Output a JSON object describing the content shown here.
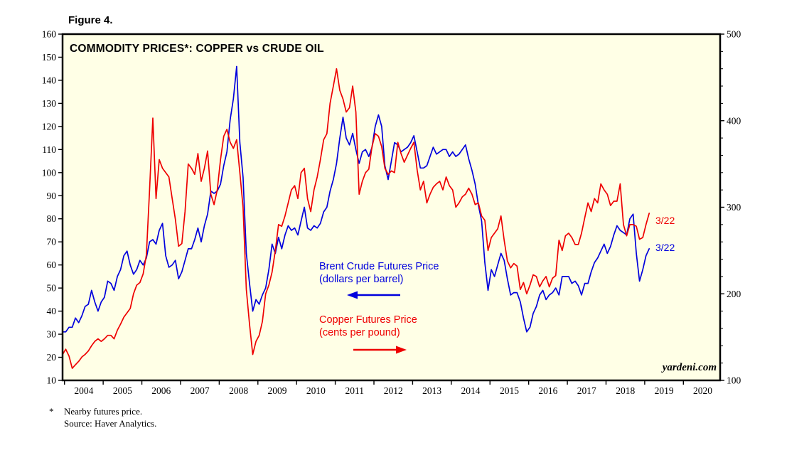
{
  "figure_label": "Figure 4.",
  "chart_title": "COMMODITY PRICES*: COPPER vs CRUDE OIL",
  "legend": {
    "brent": {
      "line1": "Brent Crude Futures Price",
      "line2": "(dollars per barrel)"
    },
    "copper": {
      "line1": "Copper Futures Price",
      "line2": "(cents per pound)"
    }
  },
  "annotations": {
    "brent": "3/22",
    "copper": "3/22"
  },
  "watermark": "yardeni.com",
  "footnote": {
    "marker": "*",
    "line1": "Nearby futures price.",
    "line2": "Source: Haver Analytics."
  },
  "colors": {
    "brent": "#0000dd",
    "copper": "#ee0000",
    "plot_bg": "#ffffe6",
    "axis": "#000000"
  },
  "chart_data": {
    "type": "line",
    "title": "COMMODITY PRICES*: COPPER vs CRUDE OIL",
    "x_axis": {
      "min": 2003.95,
      "max": 2020.95,
      "tick_start": 2004,
      "tick_end": 2020,
      "year_labels": [
        2004,
        2005,
        2006,
        2007,
        2008,
        2009,
        2010,
        2011,
        2012,
        2013,
        2014,
        2015,
        2016,
        2017,
        2018,
        2019,
        2020
      ]
    },
    "left_axis": {
      "min": 10,
      "max": 160,
      "tick_step": 10,
      "tick_labels": [
        10,
        20,
        30,
        40,
        50,
        60,
        70,
        80,
        90,
        100,
        110,
        120,
        130,
        140,
        150,
        160
      ]
    },
    "right_axis": {
      "min": 100,
      "max": 500,
      "tick_step": 100,
      "minor_step": 20,
      "tick_labels": [
        100,
        200,
        300,
        400,
        500
      ]
    },
    "series": [
      {
        "name": "Brent Crude Futures Price (dollars per barrel)",
        "axis": "left",
        "color_key": "brent",
        "x_start": 2003.95,
        "x_step": 0.0833333,
        "last_point_label": "3/22",
        "values": [
          31,
          31,
          33,
          33,
          37,
          35,
          38,
          42,
          43,
          49,
          44,
          40,
          44,
          46,
          53,
          52,
          49,
          55,
          58,
          64,
          66,
          60,
          56,
          58,
          62,
          60,
          63,
          70,
          71,
          69,
          75,
          78,
          64,
          59,
          60,
          62,
          54,
          57,
          62,
          67,
          67,
          71,
          76,
          70,
          77,
          82,
          92,
          91,
          92,
          95,
          103,
          109,
          123,
          132,
          146,
          113,
          98,
          65,
          52,
          40,
          45,
          43,
          47,
          50,
          58,
          69,
          65,
          72,
          67,
          73,
          77,
          75,
          76,
          73,
          79,
          85,
          76,
          75,
          77,
          76,
          78,
          83,
          85,
          92,
          97,
          104,
          115,
          124,
          115,
          112,
          117,
          110,
          104,
          109,
          110,
          107,
          111,
          120,
          125,
          120,
          103,
          97,
          105,
          113,
          112,
          109,
          110,
          111,
          113,
          116,
          109,
          102,
          102,
          103,
          107,
          111,
          108,
          109,
          110,
          110,
          107,
          109,
          107,
          108,
          110,
          112,
          106,
          101,
          95,
          86,
          79,
          61,
          49,
          58,
          55,
          60,
          65,
          62,
          54,
          47,
          48,
          48,
          44,
          37,
          31,
          33,
          39,
          42,
          47,
          49,
          45,
          47,
          48,
          50,
          47,
          55,
          55,
          55,
          52,
          53,
          51,
          47,
          52,
          52,
          57,
          61,
          63,
          66,
          69,
          65,
          68,
          73,
          77,
          75,
          74,
          73,
          80,
          82,
          65,
          53,
          58,
          64,
          67
        ]
      },
      {
        "name": "Copper Futures Price (cents per pound)",
        "axis": "right",
        "color_key": "copper",
        "x_start": 2003.95,
        "x_step": 0.0833333,
        "last_point_label": "3/22",
        "values": [
          130,
          136,
          128,
          114,
          118,
          122,
          127,
          130,
          134,
          140,
          145,
          148,
          145,
          148,
          152,
          152,
          148,
          158,
          165,
          173,
          178,
          183,
          200,
          210,
          213,
          223,
          245,
          320,
          403,
          310,
          355,
          345,
          340,
          335,
          310,
          286,
          255,
          258,
          295,
          350,
          345,
          338,
          362,
          330,
          345,
          365,
          315,
          303,
          320,
          355,
          382,
          390,
          375,
          368,
          378,
          340,
          300,
          205,
          165,
          130,
          145,
          152,
          168,
          200,
          210,
          225,
          250,
          280,
          278,
          290,
          305,
          320,
          325,
          310,
          340,
          345,
          310,
          295,
          320,
          335,
          355,
          378,
          385,
          420,
          440,
          460,
          435,
          425,
          410,
          415,
          440,
          410,
          315,
          330,
          340,
          344,
          370,
          385,
          382,
          370,
          345,
          338,
          342,
          340,
          375,
          362,
          352,
          360,
          368,
          375,
          343,
          320,
          330,
          305,
          315,
          323,
          327,
          330,
          320,
          335,
          325,
          320,
          300,
          305,
          312,
          315,
          322,
          315,
          303,
          305,
          290,
          285,
          250,
          265,
          270,
          275,
          290,
          262,
          238,
          230,
          235,
          232,
          205,
          213,
          200,
          210,
          222,
          220,
          208,
          215,
          220,
          208,
          218,
          221,
          262,
          250,
          267,
          270,
          265,
          257,
          257,
          270,
          288,
          305,
          295,
          310,
          305,
          327,
          320,
          315,
          302,
          307,
          307,
          327,
          280,
          267,
          280,
          280,
          278,
          263,
          265,
          280,
          293
        ]
      }
    ]
  }
}
